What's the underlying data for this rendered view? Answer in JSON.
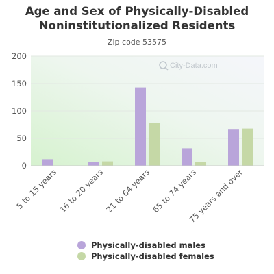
{
  "chart_data": {
    "type": "bar",
    "title_lines": [
      "Age and Sex of Physically-Disabled",
      "Noninstitutionalized Residents"
    ],
    "subtitle": "Zip code 53575",
    "categories": [
      "5 to 15 years",
      "16 to 20 years",
      "21 to 64 years",
      "65 to 74 years",
      "75 years and over"
    ],
    "series": [
      {
        "name": "Physically-disabled males",
        "values": [
          12,
          7,
          143,
          32,
          66
        ],
        "color": "#b9a5da"
      },
      {
        "name": "Physically-disabled females",
        "values": [
          0,
          8,
          78,
          7,
          68
        ],
        "color": "#c5d8a6"
      }
    ],
    "ylim": [
      0,
      200
    ],
    "yticks": [
      0,
      50,
      100,
      150,
      200
    ],
    "grid": true,
    "legend_position": "bottom"
  },
  "watermark": "City-Data.com"
}
